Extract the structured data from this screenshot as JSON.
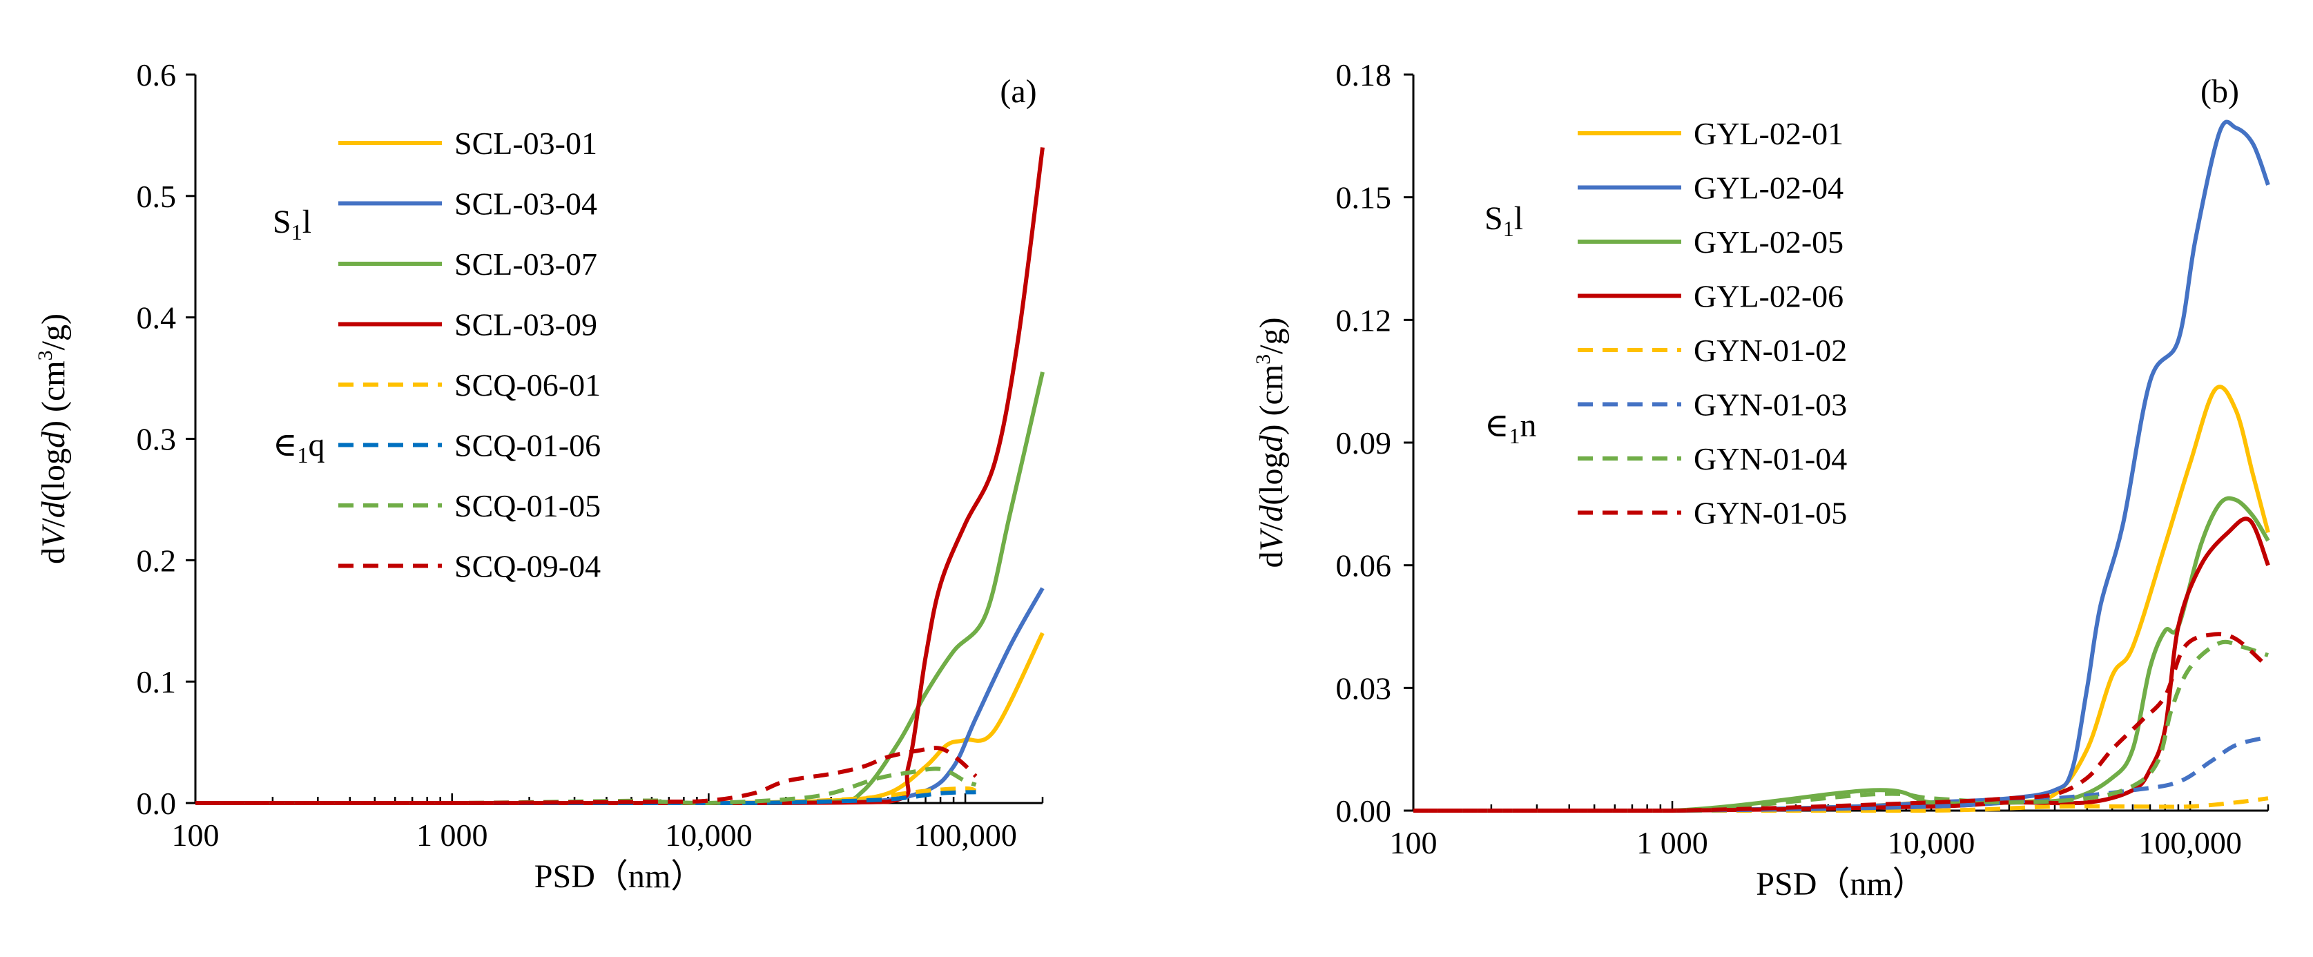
{
  "figure": {
    "panels": [
      "a",
      "b"
    ]
  },
  "chart_data": [
    {
      "type": "line",
      "panel": "(a)",
      "xlabel": "PSD（nm）",
      "ylabel": "dV/d(logd) (cm³/g)",
      "ylabel_parts": [
        "d",
        "V",
        "/",
        "d",
        "(log",
        "d",
        ")",
        "(cm",
        "3",
        "/g)"
      ],
      "xscale": "log",
      "xlim": [
        100,
        200000
      ],
      "ylim": [
        0,
        0.6
      ],
      "x_ticks": [
        100,
        1000,
        10000,
        100000
      ],
      "x_tick_labels": [
        "100",
        "1 000",
        "10,000",
        "100,000"
      ],
      "y_ticks": [
        0,
        0.1,
        0.2,
        0.3,
        0.4,
        0.5,
        0.6
      ],
      "y_tick_labels": [
        "0.0",
        "0.1",
        "0.2",
        "0.3",
        "0.4",
        "0.5",
        "0.6"
      ],
      "formations": [
        {
          "main": "S",
          "sub": "1",
          "tail": "l"
        },
        {
          "main": "∈",
          "sub": "1",
          "tail": "q"
        }
      ],
      "series": [
        {
          "name": "SCL-03-01",
          "color": "#FFC000",
          "dash": false,
          "x": [
            100,
            1000,
            10000,
            30000,
            50000,
            70000,
            85000,
            100000,
            130000,
            200000
          ],
          "y": [
            0,
            0,
            0,
            0.002,
            0.008,
            0.03,
            0.048,
            0.052,
            0.06,
            0.14
          ]
        },
        {
          "name": "SCL-03-04",
          "color": "#4472C4",
          "dash": false,
          "x": [
            100,
            1000,
            10000,
            40000,
            70000,
            90000,
            110000,
            150000,
            200000
          ],
          "y": [
            0,
            0,
            0,
            0.001,
            0.01,
            0.03,
            0.07,
            0.13,
            0.177
          ]
        },
        {
          "name": "SCL-03-07",
          "color": "#70AD47",
          "dash": false,
          "x": [
            100,
            1000,
            10000,
            30000,
            40000,
            55000,
            70000,
            90000,
            120000,
            150000,
            200000
          ],
          "y": [
            0,
            0,
            0,
            0.001,
            0.01,
            0.05,
            0.09,
            0.125,
            0.155,
            0.24,
            0.355
          ]
        },
        {
          "name": "SCL-03-09",
          "color": "#C00000",
          "dash": false,
          "x": [
            100,
            1000,
            10000,
            50000,
            60000,
            70000,
            80000,
            100000,
            130000,
            160000,
            200000
          ],
          "y": [
            0,
            0,
            0,
            0.001,
            0.03,
            0.12,
            0.18,
            0.23,
            0.28,
            0.38,
            0.54
          ]
        },
        {
          "name": "SCQ-06-01",
          "color": "#FFC000",
          "dash": true,
          "x": [
            100,
            1000,
            10000,
            20000,
            40000,
            70000,
            100000,
            110000
          ],
          "y": [
            0,
            0,
            0,
            0.001,
            0.004,
            0.01,
            0.012,
            0.01
          ]
        },
        {
          "name": "SCQ-01-06",
          "color": "#0070C0",
          "dash": true,
          "x": [
            100,
            1000,
            10000,
            20000,
            50000,
            80000,
            110000
          ],
          "y": [
            0,
            0,
            0,
            0.0005,
            0.003,
            0.008,
            0.009
          ]
        },
        {
          "name": "SCQ-01-05",
          "color": "#70AD47",
          "dash": true,
          "x": [
            100,
            1000,
            5800,
            6500,
            10000,
            20000,
            30000,
            45000,
            60000,
            80000,
            100000,
            110000
          ],
          "y": [
            0,
            0,
            0.002,
            0.001,
            0,
            0.003,
            0.008,
            0.02,
            0.025,
            0.028,
            0.018,
            0.015
          ]
        },
        {
          "name": "SCQ-09-04",
          "color": "#C00000",
          "dash": true,
          "x": [
            100,
            1000,
            6000,
            10000,
            15000,
            20000,
            30000,
            40000,
            50000,
            65000,
            80000,
            95000,
            110000
          ],
          "y": [
            0,
            0,
            0.001,
            0.002,
            0.008,
            0.018,
            0.024,
            0.03,
            0.038,
            0.043,
            0.045,
            0.035,
            0.022
          ]
        }
      ]
    },
    {
      "type": "line",
      "panel": "(b)",
      "xlabel": "PSD（nm）",
      "ylabel": "dV/d(logd) (cm³/g)",
      "ylabel_parts": [
        "d",
        "V",
        "/",
        "d",
        "(log",
        "d",
        ")",
        "(cm",
        "3",
        "/g)"
      ],
      "xscale": "log",
      "xlim": [
        100,
        200000
      ],
      "ylim": [
        0,
        0.18
      ],
      "x_ticks": [
        100,
        1000,
        10000,
        100000
      ],
      "x_tick_labels": [
        "100",
        "1 000",
        "10,000",
        "100,000"
      ],
      "y_ticks": [
        0,
        0.03,
        0.06,
        0.09,
        0.12,
        0.15,
        0.18
      ],
      "y_tick_labels": [
        "0.00",
        "0.03",
        "0.06",
        "0.09",
        "0.12",
        "0.15",
        "0.18"
      ],
      "formations": [
        {
          "main": "S",
          "sub": "1",
          "tail": "l"
        },
        {
          "main": "∈",
          "sub": "1",
          "tail": "n"
        }
      ],
      "series": [
        {
          "name": "GYL-02-01",
          "color": "#FFC000",
          "dash": false,
          "x": [
            100,
            1000,
            5000,
            10000,
            20000,
            30000,
            40000,
            50000,
            60000,
            80000,
            100000,
            125000,
            150000,
            175000,
            200000
          ],
          "y": [
            0,
            0,
            0.001,
            0.002,
            0.002,
            0.004,
            0.015,
            0.033,
            0.04,
            0.065,
            0.085,
            0.103,
            0.098,
            0.082,
            0.068
          ]
        },
        {
          "name": "GYL-02-04",
          "color": "#4472C4",
          "dash": false,
          "x": [
            100,
            1000,
            5000,
            10000,
            20000,
            30000,
            35000,
            40000,
            45000,
            55000,
            70000,
            90000,
            105000,
            130000,
            150000,
            175000,
            200000
          ],
          "y": [
            0,
            0,
            0.001,
            0.002,
            0.003,
            0.005,
            0.01,
            0.03,
            0.05,
            0.07,
            0.105,
            0.115,
            0.14,
            0.166,
            0.167,
            0.163,
            0.153
          ]
        },
        {
          "name": "GYL-02-05",
          "color": "#70AD47",
          "dash": false,
          "x": [
            100,
            1000,
            6000,
            10000,
            20000,
            35000,
            50000,
            60000,
            70000,
            80000,
            90000,
            110000,
            130000,
            150000,
            175000,
            200000
          ],
          "y": [
            0,
            0,
            0.005,
            0.002,
            0.002,
            0.003,
            0.008,
            0.015,
            0.035,
            0.044,
            0.045,
            0.065,
            0.075,
            0.076,
            0.072,
            0.066
          ]
        },
        {
          "name": "GYL-02-06",
          "color": "#C00000",
          "dash": false,
          "x": [
            100,
            1000,
            10000,
            20000,
            40000,
            60000,
            70000,
            80000,
            90000,
            110000,
            140000,
            170000,
            200000
          ],
          "y": [
            0,
            0,
            0.001,
            0.002,
            0.002,
            0.005,
            0.01,
            0.02,
            0.045,
            0.06,
            0.068,
            0.071,
            0.06
          ]
        },
        {
          "name": "GYN-01-02",
          "color": "#FFC000",
          "dash": true,
          "x": [
            100,
            1000,
            10000,
            30000,
            60000,
            100000,
            150000,
            200000
          ],
          "y": [
            0,
            0,
            0,
            0.001,
            0.001,
            0.001,
            0.002,
            0.003
          ]
        },
        {
          "name": "GYN-01-03",
          "color": "#4472C4",
          "dash": true,
          "x": [
            100,
            1000,
            10000,
            30000,
            60000,
            90000,
            120000,
            150000,
            200000
          ],
          "y": [
            0,
            0,
            0.001,
            0.003,
            0.005,
            0.007,
            0.012,
            0.016,
            0.018
          ]
        },
        {
          "name": "GYN-01-04",
          "color": "#70AD47",
          "dash": true,
          "x": [
            100,
            1000,
            6000,
            10000,
            20000,
            40000,
            60000,
            75000,
            85000,
            100000,
            130000,
            160000,
            200000
          ],
          "y": [
            0,
            0,
            0.004,
            0.003,
            0.002,
            0.003,
            0.006,
            0.012,
            0.025,
            0.035,
            0.041,
            0.04,
            0.038
          ]
        },
        {
          "name": "GYN-01-05",
          "color": "#C00000",
          "dash": true,
          "x": [
            100,
            1000,
            10000,
            20000,
            30000,
            40000,
            50000,
            65000,
            80000,
            95000,
            120000,
            150000,
            200000
          ],
          "y": [
            0,
            0,
            0.002,
            0.003,
            0.004,
            0.008,
            0.015,
            0.022,
            0.028,
            0.04,
            0.043,
            0.042,
            0.035
          ]
        }
      ]
    }
  ]
}
